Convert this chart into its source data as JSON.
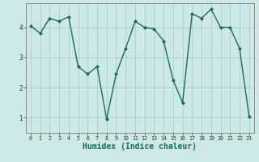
{
  "x": [
    0,
    1,
    2,
    3,
    4,
    5,
    6,
    7,
    8,
    9,
    10,
    11,
    12,
    13,
    14,
    15,
    16,
    17,
    18,
    19,
    20,
    21,
    22,
    23
  ],
  "y": [
    4.05,
    3.8,
    4.3,
    4.2,
    4.35,
    2.7,
    2.45,
    2.7,
    0.95,
    2.45,
    3.3,
    4.2,
    4.0,
    3.95,
    3.55,
    2.25,
    1.5,
    4.45,
    4.3,
    4.6,
    4.0,
    4.0,
    3.3,
    1.05
  ],
  "line_color": "#1a6b5a",
  "marker": "D",
  "marker_size": 2.0,
  "bg_color": "#cce9e7",
  "grid_color": "#aacfcc",
  "xlabel": "Humidex (Indice chaleur)",
  "ylim": [
    0.5,
    4.8
  ],
  "xlim": [
    -0.5,
    23.5
  ],
  "yticks": [
    1,
    2,
    3,
    4
  ],
  "xticks": [
    0,
    1,
    2,
    3,
    4,
    5,
    6,
    7,
    8,
    9,
    10,
    11,
    12,
    13,
    14,
    15,
    16,
    17,
    18,
    19,
    20,
    21,
    22,
    23
  ],
  "tick_color": "#333333",
  "axis_color": "#888888",
  "font_color": "#1a6b5a",
  "xlabel_fontsize": 7.0,
  "tick_fontsize": 5.5,
  "linewidth": 1.0
}
